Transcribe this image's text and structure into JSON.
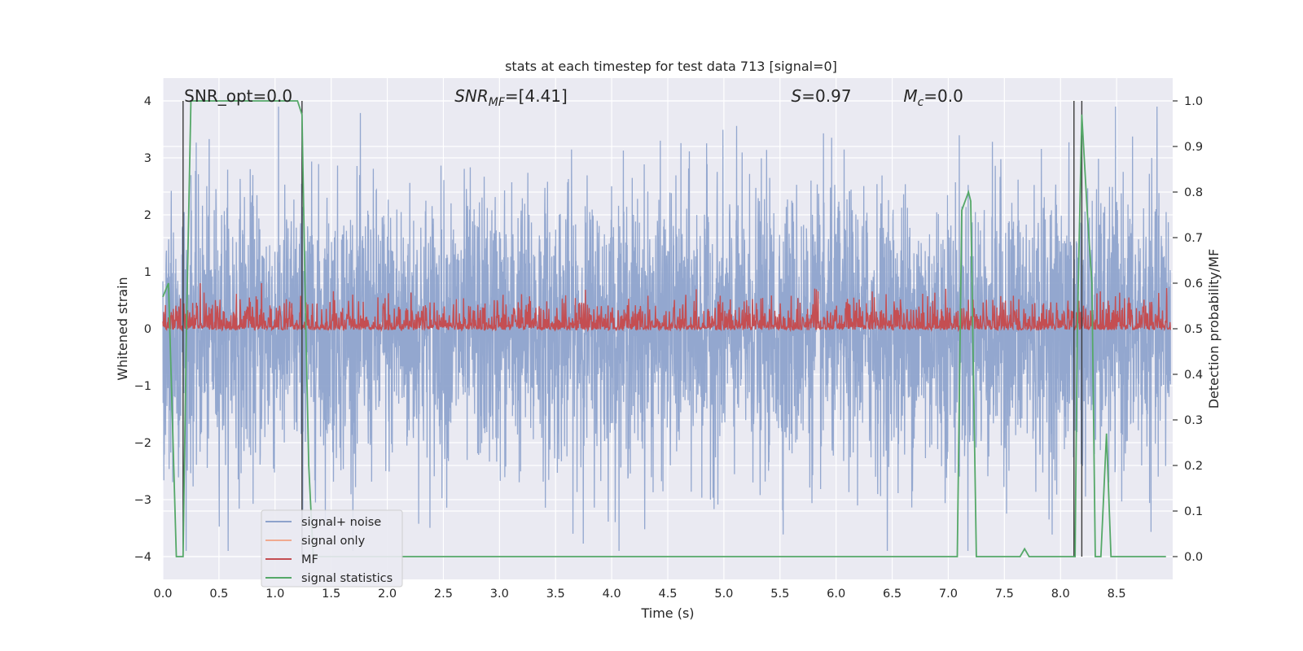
{
  "chart_data": {
    "type": "line",
    "title": "stats at each timestep for test data 713 [signal=0]",
    "xlabel": "Time (s)",
    "ylabel_left": "Whitened strain",
    "ylabel_right": "Detection probability/MF",
    "xlim": [
      0.0,
      9.0
    ],
    "ylim_left": [
      -4.4,
      4.4
    ],
    "ylim_right": [
      -0.05,
      1.05
    ],
    "xticks": [
      0.0,
      0.5,
      1.0,
      1.5,
      2.0,
      2.5,
      3.0,
      3.5,
      4.0,
      4.5,
      5.0,
      5.5,
      6.0,
      6.5,
      7.0,
      7.5,
      8.0,
      8.5
    ],
    "xtick_labels": [
      "0.0",
      "0.5",
      "1.0",
      "1.5",
      "2.0",
      "2.5",
      "3.0",
      "3.5",
      "4.0",
      "4.5",
      "5.0",
      "5.5",
      "6.0",
      "6.5",
      "7.0",
      "7.5",
      "8.0",
      "8.5"
    ],
    "yticks_left": [
      -4,
      -3,
      -2,
      -1,
      0,
      1,
      2,
      3,
      4
    ],
    "ytick_labels_left": [
      "−4",
      "−3",
      "−2",
      "−1",
      "0",
      "1",
      "2",
      "3",
      "4"
    ],
    "yticks_right": [
      0.0,
      0.1,
      0.2,
      0.3,
      0.4,
      0.5,
      0.6,
      0.7,
      0.8,
      0.9,
      1.0
    ],
    "ytick_labels_right": [
      "0.0",
      "0.1",
      "0.2",
      "0.3",
      "0.4",
      "0.5",
      "0.6",
      "0.7",
      "0.8",
      "0.9",
      "1.0"
    ],
    "grid": true,
    "legend_placement": "lower-left",
    "annotations": [
      {
        "text": "SNR_opt=0.0",
        "x": 0.19,
        "y": 4.1
      },
      {
        "text": "SNR_MF=[4.41]",
        "x": 2.6,
        "y": 4.1
      },
      {
        "text": "S=0.97",
        "x": 5.6,
        "y": 4.1
      },
      {
        "text": "M_c=0.0",
        "x": 6.6,
        "y": 4.1
      }
    ],
    "vlines": [
      0.18,
      1.24,
      8.12,
      8.19
    ],
    "series": [
      {
        "name": "signal+ noise",
        "color": "#8ea3cc",
        "axis": "left",
        "kind": "noise",
        "amplitude_typical": 1.2,
        "amplitude_peak": 3.9
      },
      {
        "name": "signal only",
        "color": "#f0a98f",
        "axis": "left",
        "values": []
      },
      {
        "name": "MF",
        "color": "#c44e52",
        "axis": "right",
        "kind": "noise",
        "baseline": 0.505,
        "amplitude_peak": 0.6
      },
      {
        "name": "signal statistics",
        "color": "#55a868",
        "axis": "right",
        "x": [
          0.0,
          0.05,
          0.12,
          0.18,
          0.21,
          0.25,
          0.3,
          0.6,
          1.0,
          1.2,
          1.24,
          1.27,
          1.3,
          1.34,
          1.36,
          1.5,
          3.0,
          5.0,
          7.0,
          7.08,
          7.12,
          7.18,
          7.2,
          7.25,
          7.5,
          7.6,
          7.64,
          7.68,
          7.72,
          7.76,
          8.0,
          8.1,
          8.13,
          8.15,
          8.19,
          8.24,
          8.28,
          8.31,
          8.36,
          8.41,
          8.45,
          8.52,
          8.6,
          8.7,
          8.94
        ],
        "y": [
          0.57,
          0.6,
          0.0,
          0.0,
          0.5,
          1.0,
          1.0,
          1.0,
          1.0,
          1.0,
          0.97,
          0.55,
          0.2,
          0.0,
          0.0,
          0.0,
          0.0,
          0.0,
          0.0,
          0.0,
          0.76,
          0.8,
          0.78,
          0.0,
          0.0,
          0.0,
          0.0,
          0.017,
          0.0,
          0.0,
          0.0,
          0.0,
          0.0,
          0.5,
          0.97,
          0.75,
          0.6,
          0.0,
          0.0,
          0.27,
          0.0,
          0.0,
          0.0,
          0.0,
          0.0
        ]
      }
    ]
  }
}
